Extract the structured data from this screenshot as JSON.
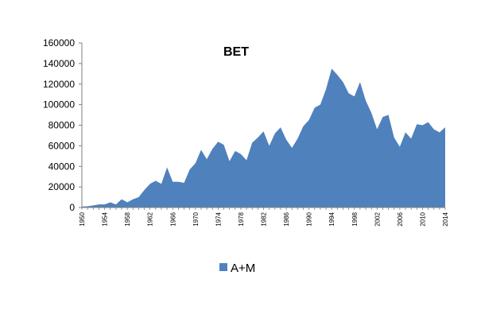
{
  "chart_data": {
    "type": "area",
    "title": "BET",
    "xlabel": "",
    "ylabel": "",
    "ylim": [
      0,
      160000
    ],
    "yticks": [
      0,
      20000,
      40000,
      60000,
      80000,
      100000,
      120000,
      140000,
      160000
    ],
    "xlim": [
      1950,
      2014
    ],
    "xticks": [
      1950,
      1954,
      1958,
      1962,
      1966,
      1970,
      1974,
      1978,
      1982,
      1986,
      1990,
      1994,
      1998,
      2002,
      2006,
      2010,
      2014
    ],
    "grid": false,
    "legend_position": "bottom",
    "color": "#4f81bd",
    "x": [
      1950,
      1951,
      1952,
      1953,
      1954,
      1955,
      1956,
      1957,
      1958,
      1959,
      1960,
      1961,
      1962,
      1963,
      1964,
      1965,
      1966,
      1967,
      1968,
      1969,
      1970,
      1971,
      1972,
      1973,
      1974,
      1975,
      1976,
      1977,
      1978,
      1979,
      1980,
      1981,
      1982,
      1983,
      1984,
      1985,
      1986,
      1987,
      1988,
      1989,
      1990,
      1991,
      1992,
      1993,
      1994,
      1995,
      1996,
      1997,
      1998,
      1999,
      2000,
      2001,
      2002,
      2003,
      2004,
      2005,
      2006,
      2007,
      2008,
      2009,
      2010,
      2011,
      2012,
      2013,
      2014
    ],
    "series": [
      {
        "name": "A+M",
        "values": [
          1000,
          1200,
          2000,
          3000,
          3000,
          5000,
          3000,
          8000,
          5000,
          8000,
          10000,
          17000,
          23000,
          26000,
          23000,
          39000,
          25000,
          25000,
          24000,
          37000,
          43000,
          56000,
          47000,
          57000,
          64000,
          61000,
          45000,
          55000,
          52000,
          46000,
          63000,
          68000,
          74000,
          60000,
          72000,
          78000,
          66000,
          58000,
          67000,
          79000,
          85000,
          97000,
          100000,
          115000,
          135000,
          129000,
          122000,
          111000,
          108000,
          122000,
          104000,
          92000,
          76000,
          88000,
          90000,
          68000,
          59000,
          73000,
          67000,
          81000,
          80000,
          83000,
          76000,
          73000,
          78000
        ]
      }
    ]
  }
}
